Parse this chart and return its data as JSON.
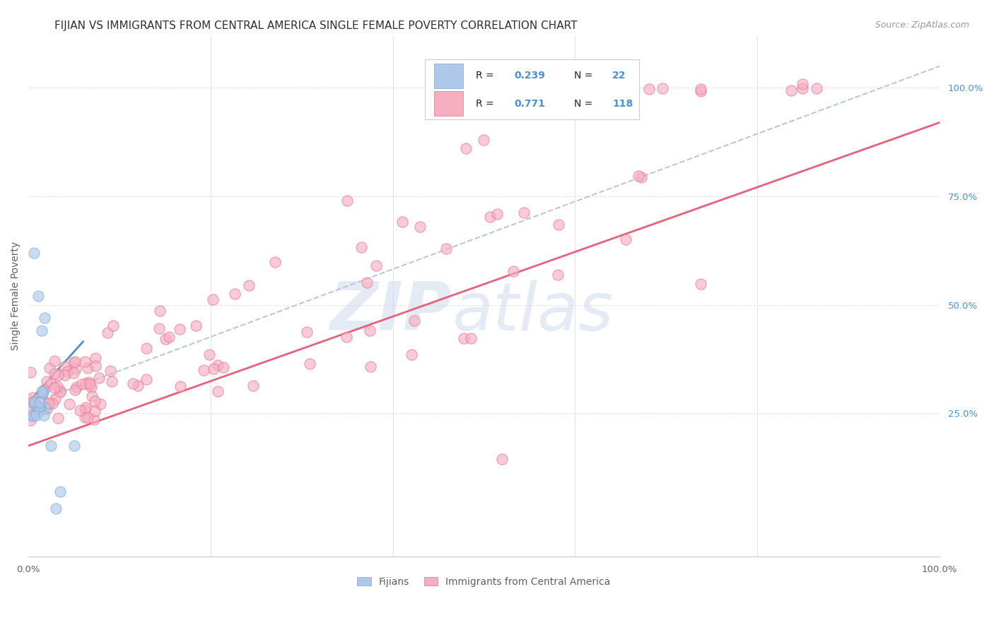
{
  "title": "FIJIAN VS IMMIGRANTS FROM CENTRAL AMERICA SINGLE FEMALE POVERTY CORRELATION CHART",
  "source": "Source: ZipAtlas.com",
  "ylabel": "Single Female Poverty",
  "xlim": [
    0,
    1
  ],
  "ylim": [
    -0.08,
    1.12
  ],
  "ytick_positions": [
    0.25,
    0.5,
    0.75,
    1.0
  ],
  "fijian_color": "#adc8e8",
  "fijian_edge_color": "#7aaad4",
  "central_america_color": "#f5afc0",
  "central_america_edge_color": "#e87090",
  "fijian_line_color": "#4a90d9",
  "central_america_line_color": "#e8607a",
  "dashed_line_color": "#b8c8d8",
  "grid_color": "#e0e4ea",
  "title_color": "#303030",
  "axis_label_color": "#606060",
  "right_tick_color": "#4a90d9",
  "ca_line_x0": 0.0,
  "ca_line_y0": 0.175,
  "ca_line_x1": 1.0,
  "ca_line_y1": 0.92,
  "fijian_line_x0": 0.0,
  "fijian_line_y0": 0.275,
  "fijian_line_x1": 0.06,
  "fijian_line_y1": 0.415,
  "dashed_line_x0": 0.0,
  "dashed_line_y0": 0.27,
  "dashed_line_x1": 1.0,
  "dashed_line_y1": 1.05,
  "scatter_size": 120,
  "scatter_alpha": 0.65,
  "scatter_linewidth": 0.8
}
